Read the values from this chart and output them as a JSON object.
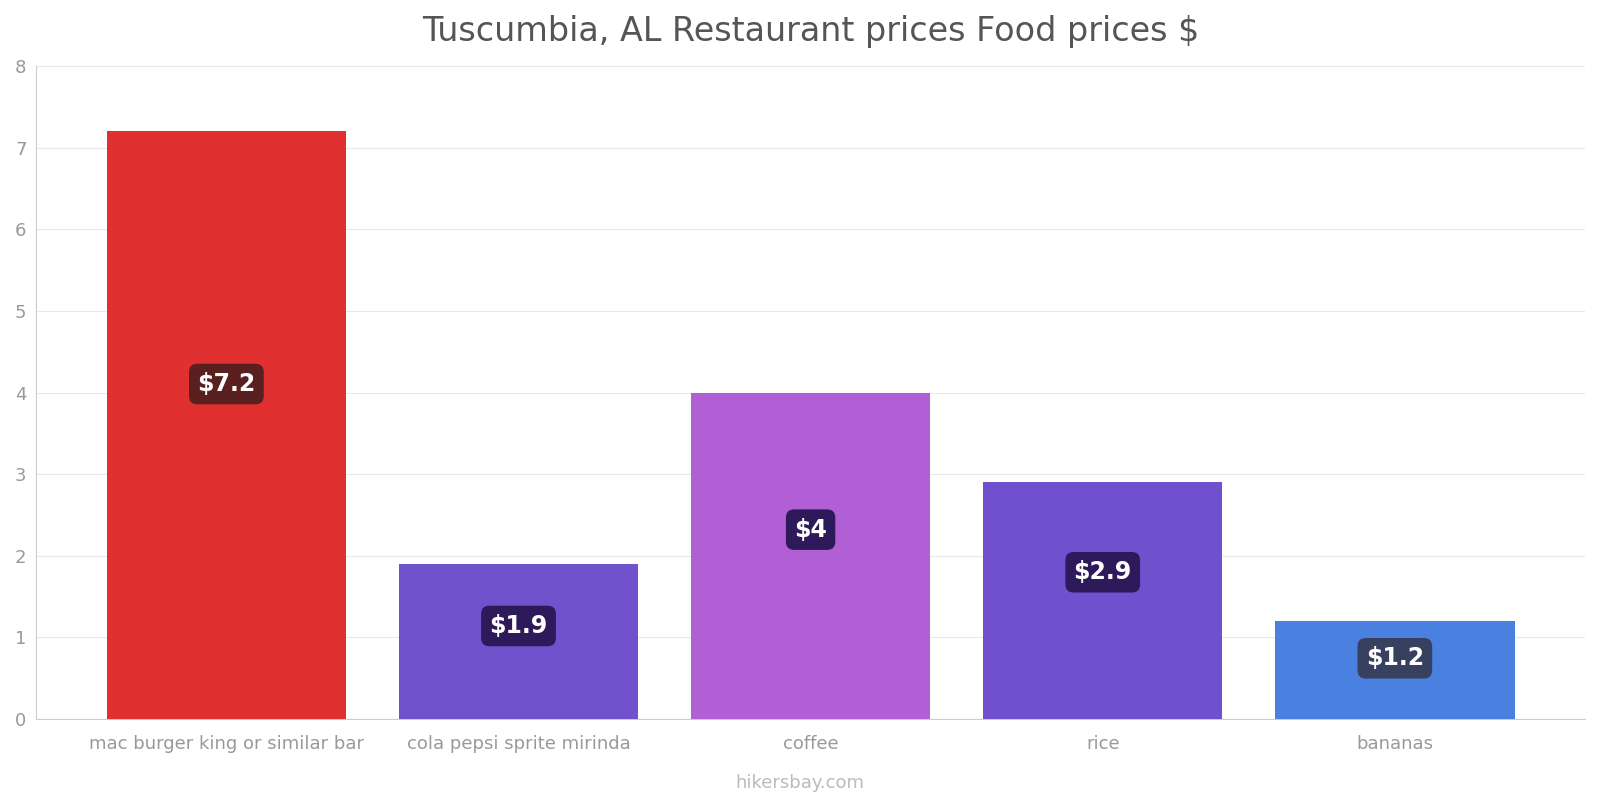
{
  "title": "Tuscumbia, AL Restaurant prices Food prices $",
  "categories": [
    "mac burger king or similar bar",
    "cola pepsi sprite mirinda",
    "coffee",
    "rice",
    "bananas"
  ],
  "values": [
    7.2,
    1.9,
    4.0,
    2.9,
    1.2
  ],
  "labels": [
    "$7.2",
    "$1.9",
    "$4",
    "$2.9",
    "$1.2"
  ],
  "bar_colors": [
    "#e03030",
    "#7052cc",
    "#b060d4",
    "#7050cc",
    "#4a80e0"
  ],
  "label_box_colors": [
    "#5a2020",
    "#2e1a5a",
    "#2e1a5a",
    "#2e1a5a",
    "#384060"
  ],
  "ylim": [
    0,
    8
  ],
  "yticks": [
    0,
    1,
    2,
    3,
    4,
    5,
    6,
    7,
    8
  ],
  "background_color": "#ffffff",
  "title_color": "#555555",
  "tick_color": "#999999",
  "watermark": "hikersbay.com",
  "title_fontsize": 24,
  "label_fontsize": 17,
  "tick_fontsize": 13,
  "watermark_fontsize": 13,
  "bar_width": 0.82
}
